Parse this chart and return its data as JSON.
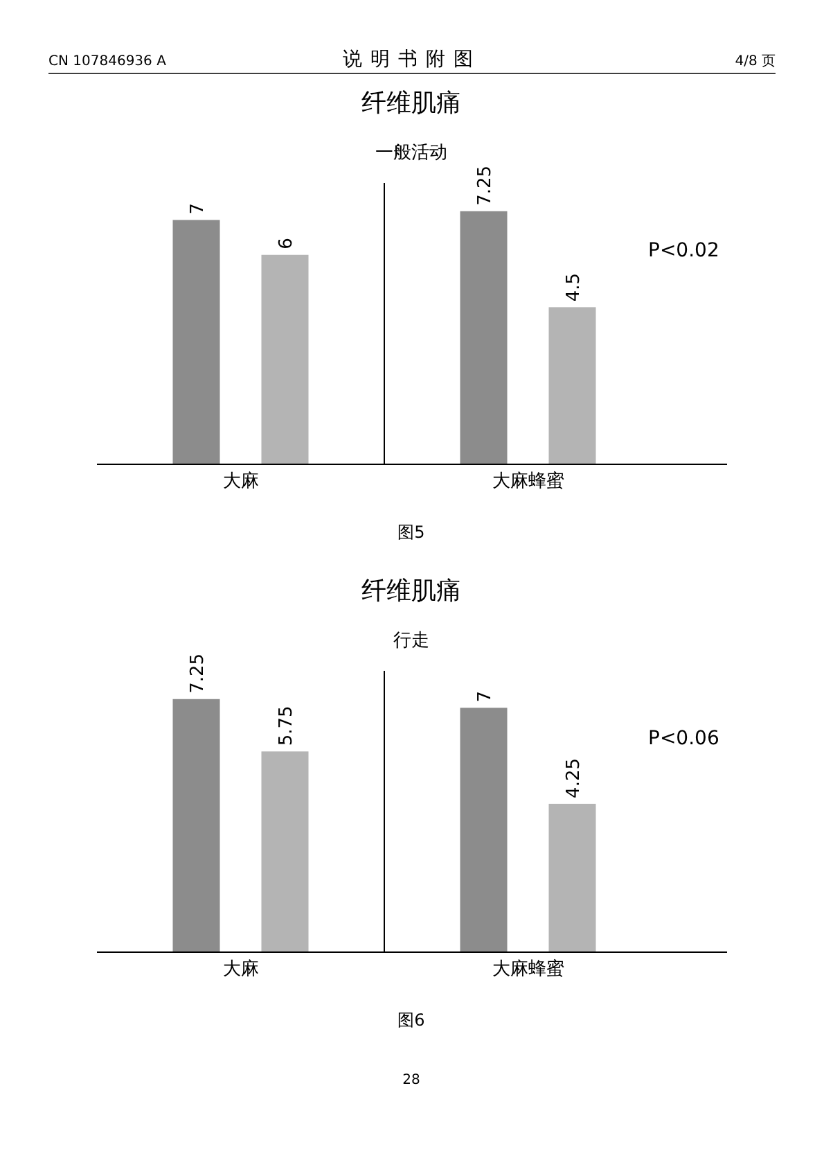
{
  "chart_data": [
    {
      "type": "bar",
      "title": "纤维肌痛",
      "subtitle": "一般活动",
      "categories": [
        "大麻",
        "大麻蜂蜜"
      ],
      "series": [
        {
          "color": "#8c8c8c",
          "values": [
            7,
            7.25
          ]
        },
        {
          "color": "#b4b4b4",
          "values": [
            6,
            4.5
          ]
        }
      ],
      "data_labels": true,
      "annotations": [
        "P<0.02",
        "图5",
        "CN 107846936 A",
        "说明书附图",
        "4/8 页"
      ]
    },
    {
      "type": "bar",
      "title": "纤维肌痛",
      "subtitle": "行走",
      "categories": [
        "大麻",
        "大麻蜂蜜"
      ],
      "series": [
        {
          "color": "#8c8c8c",
          "values": [
            7.25,
            7
          ]
        },
        {
          "color": "#b4b4b4",
          "values": [
            5.75,
            4.25
          ]
        }
      ],
      "data_labels": true,
      "annotations": [
        "P<0.06",
        "图6",
        "28"
      ]
    }
  ]
}
